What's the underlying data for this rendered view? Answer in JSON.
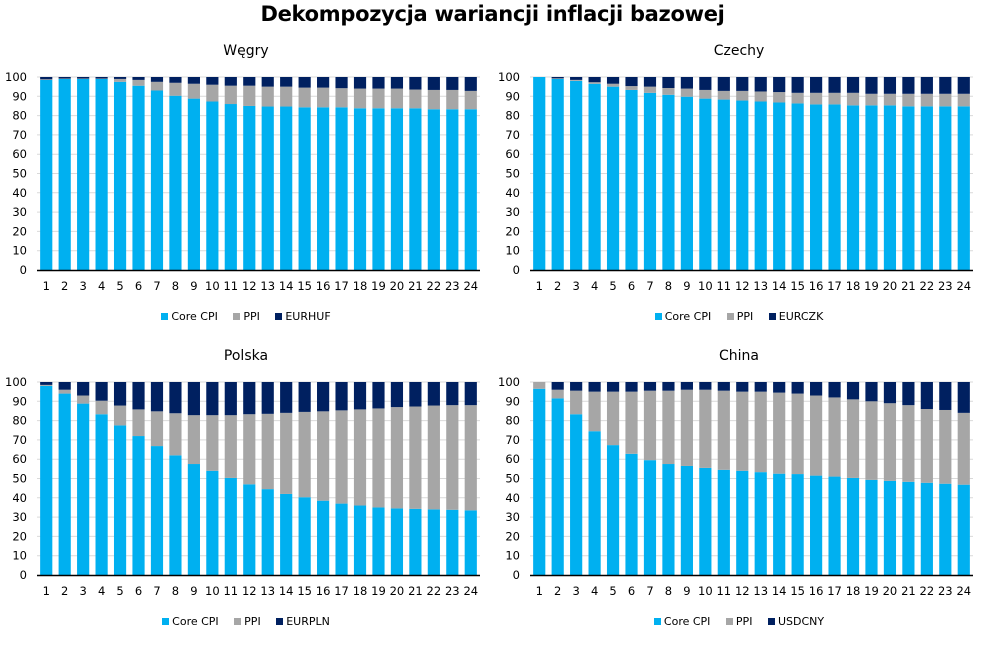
{
  "title": "Dekompozycja wariancji inflacji bazowej",
  "colors": {
    "core": "#00B0F0",
    "ppi": "#A6A6A6",
    "fx": "#002060",
    "grid": "#D9D9D9",
    "axis": "#000000"
  },
  "chart_data": [
    {
      "type": "bar",
      "stacked": true,
      "title": "Węgry",
      "categories": [
        "1",
        "2",
        "3",
        "4",
        "5",
        "6",
        "7",
        "8",
        "9",
        "10",
        "11",
        "12",
        "13",
        "14",
        "15",
        "16",
        "17",
        "18",
        "19",
        "20",
        "21",
        "22",
        "23",
        "24"
      ],
      "ylim": [
        0,
        100
      ],
      "yticks": [
        "0",
        "10",
        "20",
        "30",
        "40",
        "50",
        "60",
        "70",
        "80",
        "90",
        "100"
      ],
      "grid": true,
      "legend": "bottom",
      "series": [
        {
          "name": "Core CPI",
          "values": [
            98.5,
            99,
            99,
            99,
            97.5,
            95.5,
            93,
            90.3,
            88.8,
            87.3,
            86,
            85,
            84.7,
            84.7,
            84.3,
            84.3,
            84.3,
            83.8,
            83.8,
            83.8,
            83.8,
            83.3,
            83.3,
            83.3
          ]
        },
        {
          "name": "PPI",
          "values": [
            0.3,
            0.2,
            0.2,
            0.2,
            1.5,
            3,
            4.5,
            6.7,
            7.7,
            8.7,
            9.5,
            10.5,
            10.3,
            10.3,
            10.2,
            10.2,
            9.9,
            10.2,
            10.2,
            10.2,
            9.7,
            10,
            10,
            9.5
          ]
        },
        {
          "name": "EURHUF",
          "values": [
            1.2,
            0.8,
            0.8,
            0.8,
            1,
            1.5,
            2.5,
            3,
            3.5,
            4,
            4.5,
            4.5,
            5,
            5,
            5.5,
            5.5,
            5.8,
            6,
            6,
            6,
            6.5,
            6.7,
            6.7,
            7.2
          ]
        }
      ]
    },
    {
      "type": "bar",
      "stacked": true,
      "title": "Czechy",
      "categories": [
        "1",
        "2",
        "3",
        "4",
        "5",
        "6",
        "7",
        "8",
        "9",
        "10",
        "11",
        "12",
        "13",
        "14",
        "15",
        "16",
        "17",
        "18",
        "19",
        "20",
        "21",
        "22",
        "23",
        "24"
      ],
      "ylim": [
        0,
        100
      ],
      "yticks": [
        "0",
        "10",
        "20",
        "30",
        "40",
        "50",
        "60",
        "70",
        "80",
        "90",
        "100"
      ],
      "grid": true,
      "legend": "bottom",
      "series": [
        {
          "name": "Core CPI",
          "values": [
            100,
            99,
            98,
            96.5,
            95,
            93.3,
            91.8,
            90.8,
            89.8,
            88.8,
            88.3,
            87.8,
            87.3,
            86.8,
            86.3,
            85.8,
            85.8,
            85.3,
            85.3,
            85.3,
            84.8,
            84.8,
            84.8,
            84.8
          ]
        },
        {
          "name": "PPI",
          "values": [
            0,
            0.3,
            0.5,
            0.8,
            1.5,
            2,
            3.2,
            3.5,
            4.2,
            4.5,
            4.5,
            5,
            5.2,
            5.4,
            5.5,
            6,
            6,
            6.5,
            6,
            6,
            6.5,
            6.5,
            6.5,
            6.5
          ]
        },
        {
          "name": "EURCZK",
          "values": [
            0,
            0.7,
            1.5,
            2.7,
            3.5,
            4.7,
            5,
            5.7,
            6,
            6.7,
            7.2,
            7.2,
            7.5,
            7.8,
            8.2,
            8.2,
            8.2,
            8.2,
            8.7,
            8.7,
            8.7,
            8.7,
            8.7,
            8.7
          ]
        }
      ]
    },
    {
      "type": "bar",
      "stacked": true,
      "title": "Polska",
      "categories": [
        "1",
        "2",
        "3",
        "4",
        "5",
        "6",
        "7",
        "8",
        "9",
        "10",
        "11",
        "12",
        "13",
        "14",
        "15",
        "16",
        "17",
        "18",
        "19",
        "20",
        "21",
        "22",
        "23",
        "24"
      ],
      "ylim": [
        0,
        100
      ],
      "yticks": [
        "0",
        "10",
        "20",
        "30",
        "40",
        "50",
        "60",
        "70",
        "80",
        "90",
        "100"
      ],
      "grid": true,
      "legend": "bottom",
      "series": [
        {
          "name": "Core CPI",
          "values": [
            98,
            94,
            88.8,
            83.3,
            77.5,
            72,
            66.8,
            62,
            57.5,
            54,
            50.3,
            47,
            44.5,
            42,
            40.3,
            38.5,
            37,
            36,
            35,
            34.5,
            34.3,
            34,
            33.8,
            33.5
          ]
        },
        {
          "name": "PPI",
          "values": [
            0.5,
            2,
            4.2,
            7,
            10.3,
            13.8,
            18,
            21.8,
            25.3,
            28.8,
            32.5,
            36.3,
            39,
            42,
            44.2,
            46.3,
            48.3,
            49.8,
            51.3,
            52.5,
            53,
            53.8,
            54.2,
            54.5
          ]
        },
        {
          "name": "EURPLN",
          "values": [
            1.5,
            4,
            7,
            9.7,
            12.2,
            14.2,
            15.2,
            16.2,
            17.2,
            17.2,
            17.2,
            16.7,
            16.5,
            16,
            15.5,
            15.2,
            14.7,
            14.2,
            13.7,
            13,
            12.7,
            12.2,
            12,
            12
          ]
        }
      ]
    },
    {
      "type": "bar",
      "stacked": true,
      "title": "China",
      "categories": [
        "1",
        "2",
        "3",
        "4",
        "5",
        "6",
        "7",
        "8",
        "9",
        "10",
        "11",
        "12",
        "13",
        "14",
        "15",
        "16",
        "17",
        "18",
        "19",
        "20",
        "21",
        "22",
        "23",
        "24"
      ],
      "ylim": [
        0,
        100
      ],
      "yticks": [
        "0",
        "10",
        "20",
        "30",
        "40",
        "50",
        "60",
        "70",
        "80",
        "90",
        "100"
      ],
      "grid": true,
      "legend": "bottom",
      "series": [
        {
          "name": "Core CPI",
          "values": [
            96.5,
            91.5,
            83.3,
            74.5,
            67.3,
            62.8,
            59.5,
            57.5,
            56.5,
            55.5,
            54.5,
            54,
            53.3,
            52.5,
            52.3,
            51.5,
            51,
            50.3,
            49.3,
            48.8,
            48.3,
            47.8,
            47.3,
            46.8
          ]
        },
        {
          "name": "PPI",
          "values": [
            3.5,
            4.5,
            12.2,
            20.5,
            27.7,
            32.2,
            36,
            38,
            39.5,
            40.5,
            41,
            41,
            41.7,
            42,
            41.7,
            41.5,
            41,
            40.7,
            40.7,
            40.2,
            39.7,
            38.2,
            38.2,
            37.2
          ]
        },
        {
          "name": "USDCNY",
          "values": [
            0,
            4,
            4.5,
            5,
            5,
            5,
            4.5,
            4.5,
            4,
            4,
            4.5,
            5,
            5,
            5.5,
            6,
            7,
            8,
            9,
            10,
            11,
            12,
            14,
            14.5,
            16
          ]
        }
      ]
    }
  ]
}
